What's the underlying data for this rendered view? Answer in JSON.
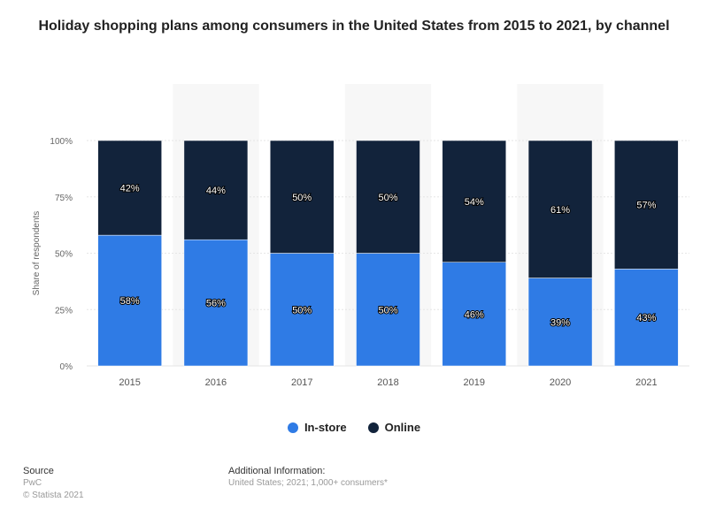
{
  "title": "Holiday shopping plans among consumers in the United States from 2015 to 2021, by channel",
  "colors": {
    "in_store": "#2f7be5",
    "online": "#12233b",
    "band": "#f7f7f7",
    "grid": "#e6e6e6"
  },
  "legend": {
    "in_store": "In-store",
    "online": "Online"
  },
  "footer": {
    "source_label": "Source",
    "source_value": "PwC",
    "copyright": "© Statista 2021",
    "info_label": "Additional Information:",
    "info_value": "United States; 2021; 1,000+ consumers*"
  },
  "chart_data": {
    "type": "bar",
    "stacked": true,
    "categories": [
      "2015",
      "2016",
      "2017",
      "2018",
      "2019",
      "2020",
      "2021"
    ],
    "series": [
      {
        "name": "In-store",
        "values": [
          58,
          56,
          50,
          50,
          46,
          39,
          43
        ]
      },
      {
        "name": "Online",
        "values": [
          42,
          44,
          50,
          50,
          54,
          61,
          57
        ]
      }
    ],
    "ylabel": "Share of respondents",
    "xlabel": "",
    "ylim": [
      0,
      100
    ],
    "yticks": [
      "0%",
      "25%",
      "50%",
      "75%",
      "100%"
    ],
    "ytick_values": [
      0,
      25,
      50,
      75,
      100
    ],
    "data_label_suffix": "%",
    "grid": true,
    "legend_position": "bottom"
  }
}
